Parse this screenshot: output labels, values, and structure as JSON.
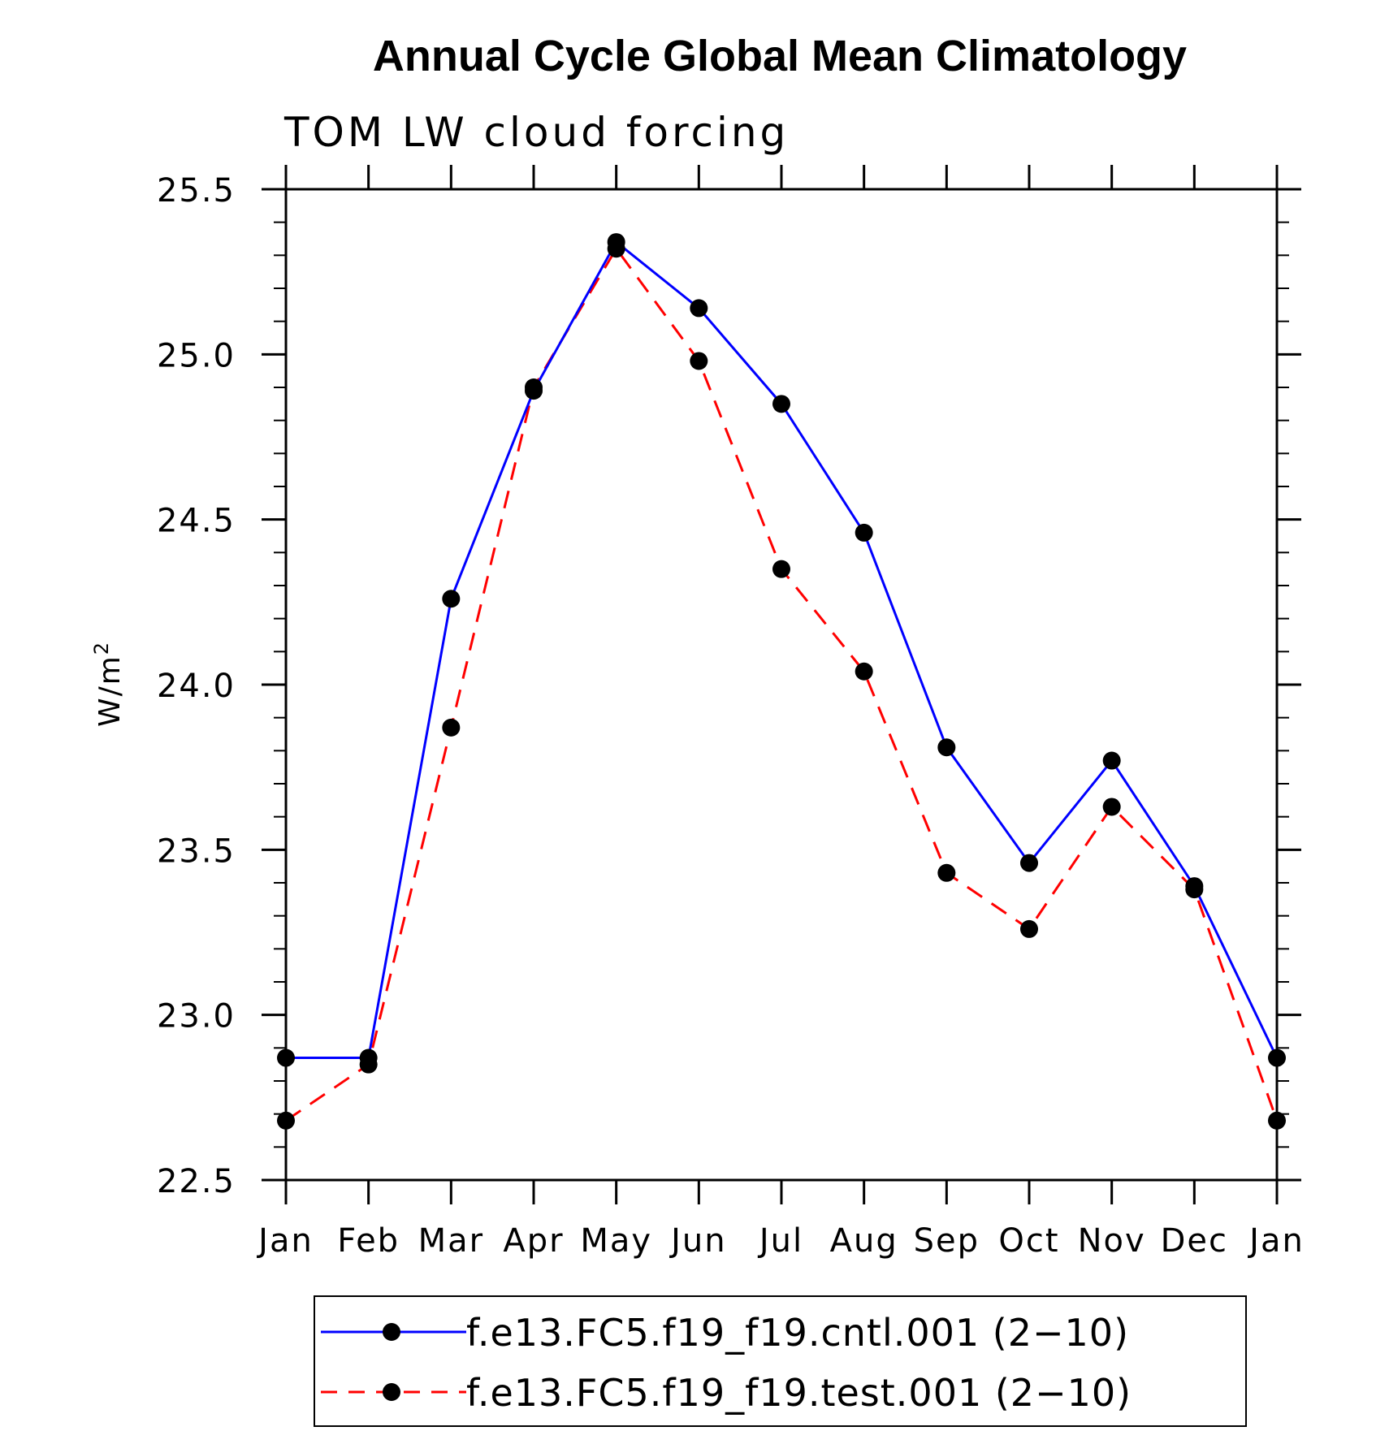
{
  "chart_data": {
    "type": "line",
    "title": "Annual Cycle Global Mean Climatology",
    "subtitle": "TOM LW cloud forcing",
    "ylabel": "W/m",
    "ylabel_superscript": "2",
    "xlabel": "",
    "categories": [
      "Jan",
      "Feb",
      "Mar",
      "Apr",
      "May",
      "Jun",
      "Jul",
      "Aug",
      "Sep",
      "Oct",
      "Nov",
      "Dec",
      "Jan"
    ],
    "ylim": [
      22.5,
      25.5
    ],
    "yticks": [
      "22.5",
      "23.0",
      "23.5",
      "24.0",
      "24.5",
      "25.0",
      "25.5"
    ],
    "series": [
      {
        "name": "f.e13.FC5.f19_f19.cntl.001 (2−10)",
        "color": "#0000ff",
        "dash": "solid",
        "marker_color": "#000000",
        "values": [
          22.87,
          22.87,
          24.26,
          24.89,
          25.34,
          25.14,
          24.85,
          24.46,
          23.81,
          23.46,
          23.77,
          23.39,
          22.87
        ]
      },
      {
        "name": "f.e13.FC5.f19_f19.test.001 (2−10)",
        "color": "#ff0000",
        "dash": "dashed",
        "marker_color": "#000000",
        "values": [
          22.68,
          22.85,
          23.87,
          24.9,
          25.32,
          24.98,
          24.35,
          24.04,
          23.43,
          23.26,
          23.63,
          23.38,
          22.68
        ]
      }
    ],
    "grid": false,
    "legend_position": "bottom"
  }
}
